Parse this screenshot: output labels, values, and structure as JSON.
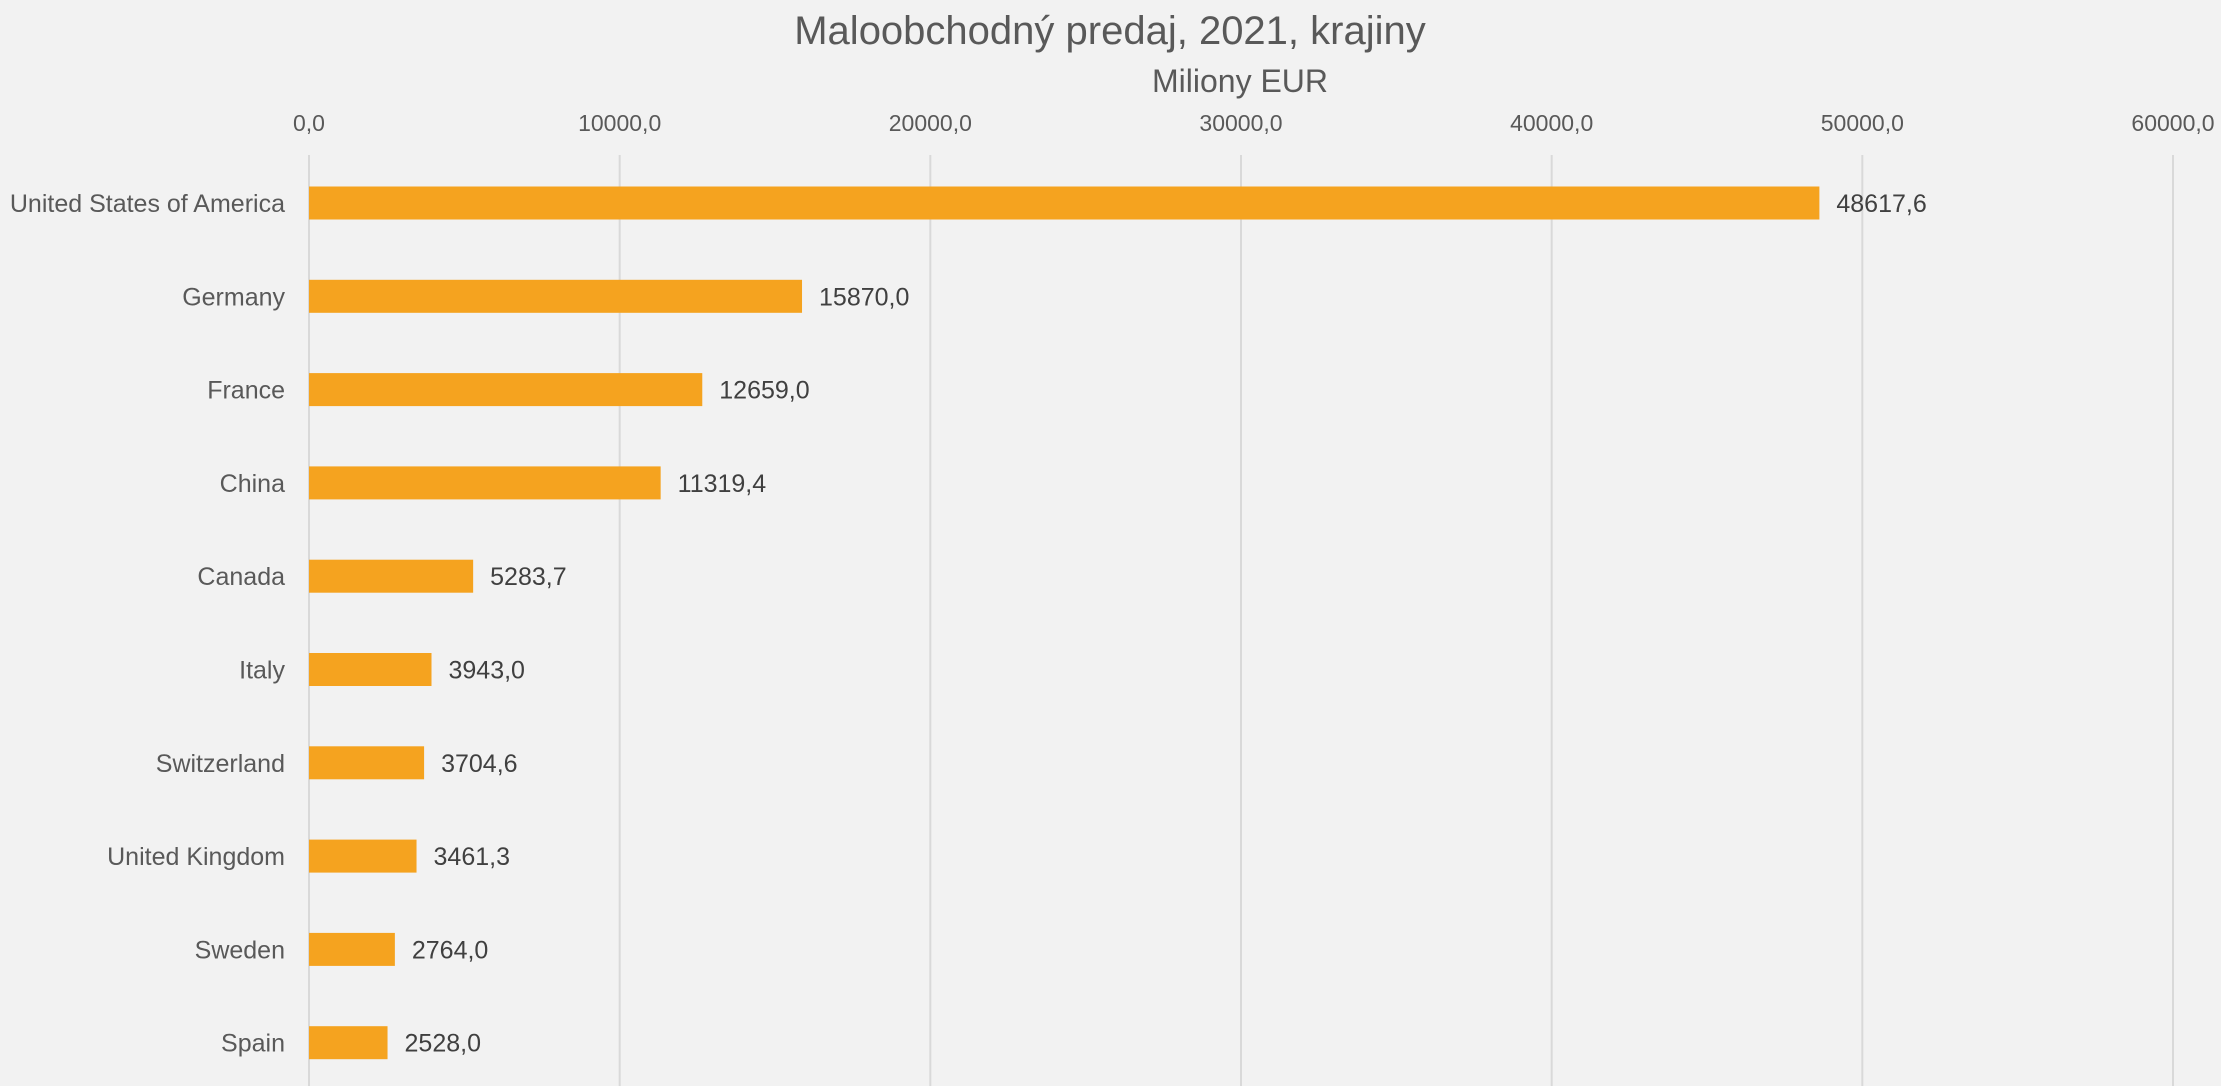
{
  "chart_data": {
    "type": "bar",
    "orientation": "horizontal",
    "title": "Maloobchodný predaj, 2021, krajiny",
    "xlabel": "Miliony EUR",
    "ylabel": "",
    "xlim": [
      0,
      60000
    ],
    "x_axis_position": "top",
    "grid": true,
    "legend": "none",
    "tick_values": [
      0,
      10000,
      20000,
      30000,
      40000,
      50000,
      60000
    ],
    "tick_labels": [
      "0,0",
      "10000,0",
      "20000,0",
      "30000,0",
      "40000,0",
      "50000,0",
      "60000,0"
    ],
    "categories": [
      "United States of America",
      "Germany",
      "France",
      "China",
      "Canada",
      "Italy",
      "Switzerland",
      "United Kingdom",
      "Sweden",
      "Spain"
    ],
    "values": [
      48617.6,
      15870.0,
      12659.0,
      11319.4,
      5283.7,
      3943.0,
      3704.6,
      3461.3,
      2764.0,
      2528.0
    ],
    "data_labels": [
      "48617,6",
      "15870,0",
      "12659,0",
      "11319,4",
      "5283,7",
      "3943,0",
      "3704,6",
      "3461,3",
      "2764,0",
      "2528,0"
    ],
    "bar_color": "#f5a31f"
  }
}
